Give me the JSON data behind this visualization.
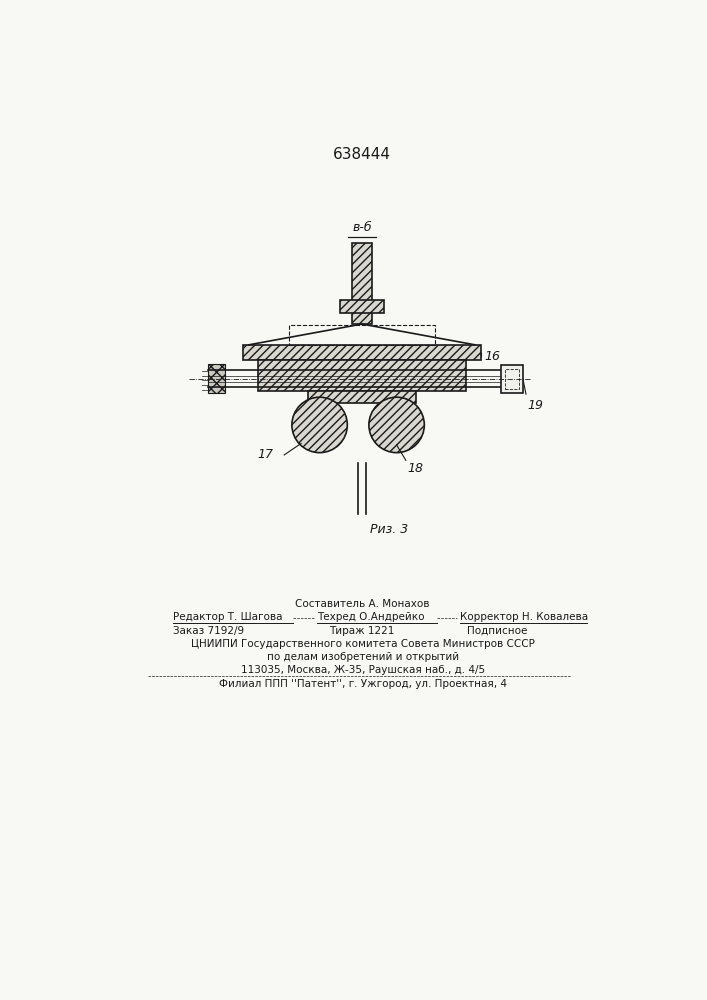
{
  "patent_number": "638444",
  "background_color": "#f8f8f4",
  "line_color": "#1a1a1a",
  "fig_label": "Риз. 3",
  "section_label": "в-б",
  "label_16": "16",
  "label_17": "17",
  "label_18": "18",
  "label_19": "19",
  "footer_line1": "Составитель А. Монахов",
  "footer_line2_left": "Редактор Т. Шагова",
  "footer_line2_mid": "Техред О.Андрейко",
  "footer_line2_right": "Корректор Н. Ковалева",
  "footer_line3_left": "Заказ 7192/9",
  "footer_line3_mid": "Тираж 1221",
  "footer_line3_right": "Подписное",
  "footer_line4": "ЦНИИПИ Государственного комитета Совета Министров СССР",
  "footer_line5": "по делам изобретений и открытий",
  "footer_line6": "113035, Москва, Ж-35, Раушская наб., д. 4/5",
  "footer_line7": "Филиал ППП ''Патент'', г. Ужгород, ул. Проектная, 4"
}
